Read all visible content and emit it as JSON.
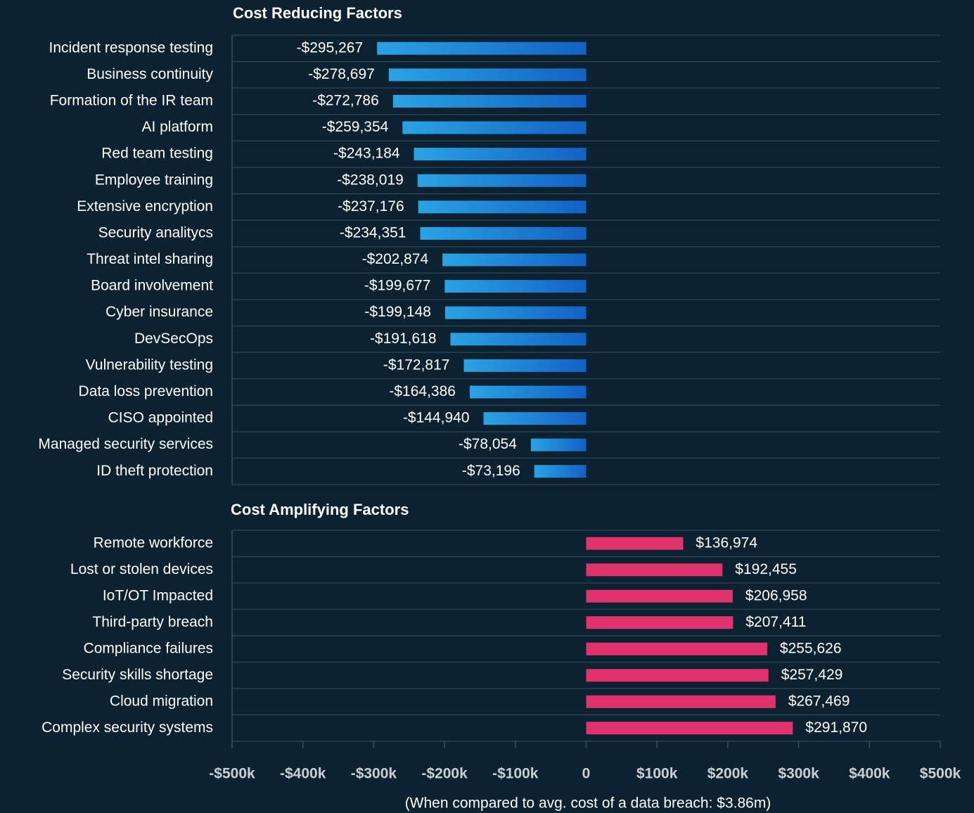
{
  "chart_data": {
    "type": "hbar-panels",
    "xlabel": "(When compared to avg. cost of a data breach: $3.86m)",
    "xlim": [
      -500000,
      500000
    ],
    "xticks": [
      {
        "value": -500000,
        "label": "-$500k"
      },
      {
        "value": -400000,
        "label": "-$400k"
      },
      {
        "value": -300000,
        "label": "-$300k"
      },
      {
        "value": -200000,
        "label": "-$200k"
      },
      {
        "value": -100000,
        "label": "-$100k"
      },
      0,
      {
        "value": 100000,
        "label": "$100k"
      },
      {
        "value": 200000,
        "label": "$200k"
      },
      {
        "value": 300000,
        "label": "$300k"
      },
      {
        "value": 400000,
        "label": "$400k"
      },
      {
        "value": 500000,
        "label": "$500k"
      }
    ],
    "panels": [
      {
        "title": "Cost Reducing Factors",
        "color": "#1e86d6",
        "categories": [
          "Incident response testing",
          "Business continuity",
          "Formation of the IR team",
          "AI platform",
          "Red team testing",
          "Employee training",
          "Extensive encryption",
          "Security analitycs",
          "Threat intel sharing",
          "Board involvement",
          "Cyber insurance",
          "DevSecOps",
          "Vulnerability testing",
          "Data loss prevention",
          "CISO appointed",
          "Managed security services",
          "ID theft protection"
        ],
        "values": [
          -295267,
          -278697,
          -272786,
          -259354,
          -243184,
          -238019,
          -237176,
          -234351,
          -202874,
          -199677,
          -199148,
          -191618,
          -172817,
          -164386,
          -144940,
          -78054,
          -73196
        ],
        "value_labels": [
          "-$295,267",
          "-$278,697",
          "-$272,786",
          "-$259,354",
          "-$243,184",
          "-$238,019",
          "-$237,176",
          "-$234,351",
          "-$202,874",
          "-$199,677",
          "-$199,148",
          "-$191,618",
          "-$172,817",
          "-$164,386",
          "-$144,940",
          "-$78,054",
          "-$73,196"
        ]
      },
      {
        "title": "Cost Amplifying Factors",
        "color": "#e0336e",
        "categories": [
          "Remote workforce",
          "Lost or stolen devices",
          "IoT/OT Impacted",
          "Third-party breach",
          "Compliance failures",
          "Security skills shortage",
          "Cloud migration",
          "Complex security systems"
        ],
        "values": [
          136974,
          192455,
          206958,
          207411,
          255626,
          257429,
          267469,
          291870
        ],
        "value_labels": [
          "$136,974",
          "$192,455",
          "$206,958",
          "$207,411",
          "$255,626",
          "$257,429",
          "$267,469",
          "$291,870"
        ]
      }
    ]
  }
}
